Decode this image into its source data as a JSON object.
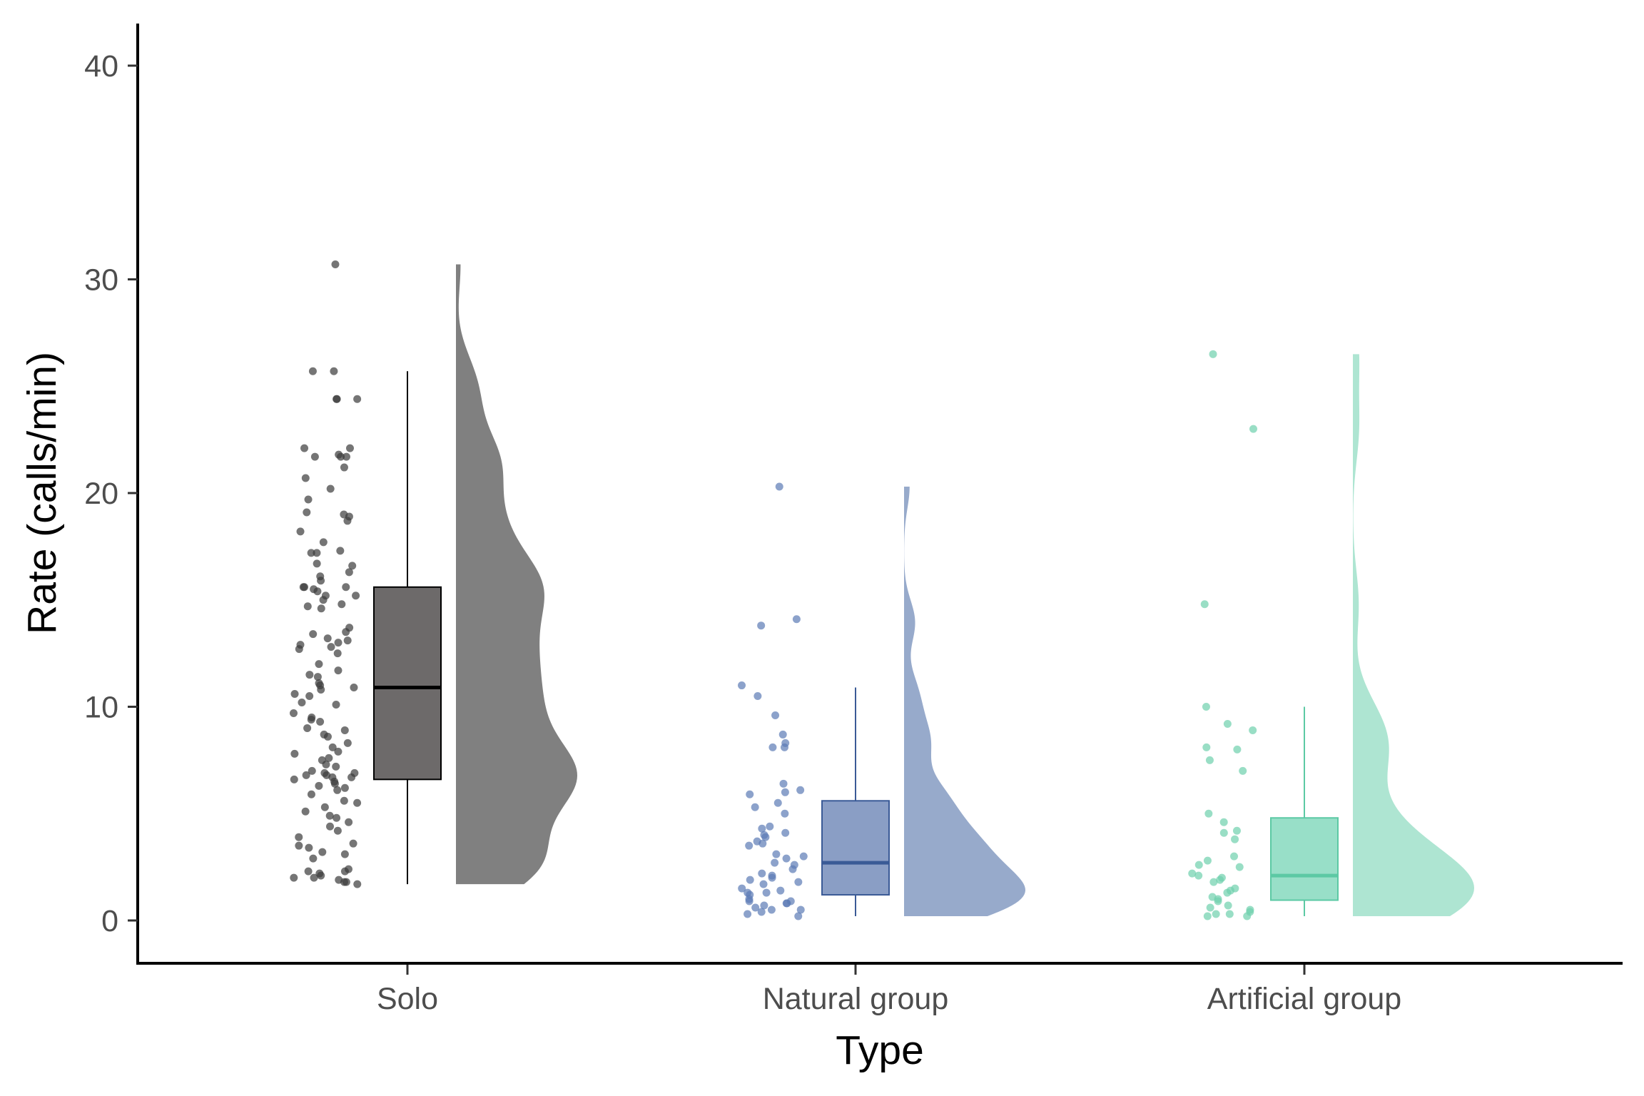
{
  "chart_data": {
    "type": "raincloud",
    "xlabel": "Type",
    "ylabel": "Rate (calls/min)",
    "ylim": [
      0,
      42
    ],
    "yticks": [
      0,
      10,
      20,
      30,
      40
    ],
    "grid": false,
    "categories": [
      "Solo",
      "Natural group",
      "Artificial group"
    ],
    "groups": [
      {
        "category": "Solo",
        "color": "#6d6a6a",
        "point_color": "#3a3a3a",
        "density_color": "#808080",
        "box": {
          "min": 1.7,
          "q1": 6.6,
          "median": 10.9,
          "q3": 15.6,
          "max": 25.7
        },
        "points": [
          30.7,
          25.7,
          25.7,
          24.4,
          24.4,
          24.4,
          22.1,
          22.1,
          21.8,
          21.7,
          21.7,
          21.7,
          21.2,
          20.7,
          20.2,
          19.7,
          19.1,
          19.0,
          18.9,
          18.7,
          18.2,
          17.7,
          17.3,
          17.2,
          17.2,
          16.7,
          16.6,
          16.3,
          16.1,
          15.9,
          15.6,
          15.6,
          15.6,
          15.5,
          15.4,
          15.2,
          15.2,
          15.0,
          14.8,
          14.7,
          14.6,
          13.7,
          13.5,
          13.4,
          13.2,
          13.1,
          13.0,
          12.9,
          12.8,
          12.7,
          12.5,
          12.0,
          11.7,
          11.5,
          11.4,
          11.1,
          11.0,
          10.9,
          10.8,
          10.6,
          10.5,
          10.2,
          10.1,
          9.7,
          9.5,
          9.4,
          9.3,
          9.0,
          8.9,
          8.7,
          8.6,
          8.3,
          8.1,
          7.9,
          7.8,
          7.6,
          7.5,
          7.3,
          7.2,
          7.0,
          6.9,
          6.9,
          6.8,
          6.8,
          6.7,
          6.7,
          6.6,
          6.5,
          6.4,
          6.3,
          6.2,
          6.1,
          5.9,
          5.6,
          5.5,
          5.3,
          5.1,
          4.9,
          4.8,
          4.6,
          4.4,
          4.2,
          3.9,
          3.6,
          3.5,
          3.4,
          3.2,
          3.1,
          2.9,
          2.4,
          2.3,
          2.3,
          2.2,
          2.1,
          2.0,
          2.0,
          1.9,
          1.8,
          1.8,
          1.7
        ],
        "density_max": 30.7
      },
      {
        "category": "Natural group",
        "color": "#8a9ec5",
        "point_color": "#5b7ab5",
        "density_color": "#97aacb",
        "line_color": "#3a5a96",
        "box": {
          "min": 0.2,
          "q1": 1.2,
          "median": 2.7,
          "q3": 5.6,
          "max": 10.9
        },
        "points": [
          20.3,
          14.1,
          13.8,
          11.0,
          10.5,
          9.6,
          8.7,
          8.3,
          8.1,
          8.1,
          6.4,
          6.1,
          6.0,
          5.9,
          5.5,
          5.3,
          5.0,
          4.4,
          4.3,
          4.1,
          4.0,
          3.9,
          3.7,
          3.6,
          3.5,
          3.1,
          3.0,
          2.9,
          2.7,
          2.6,
          2.4,
          2.2,
          2.1,
          2.0,
          1.9,
          1.8,
          1.7,
          1.5,
          1.4,
          1.3,
          1.3,
          1.2,
          1.0,
          0.9,
          0.9,
          0.8,
          0.8,
          0.7,
          0.6,
          0.5,
          0.5,
          0.4,
          0.3,
          0.2
        ],
        "density_max": 20.3
      },
      {
        "category": "Artificial group",
        "color": "#98dfc8",
        "point_color": "#6dd0ad",
        "density_color": "#aee5d2",
        "line_color": "#5cc9a4",
        "box": {
          "min": 0.2,
          "q1": 0.95,
          "median": 2.1,
          "q3": 4.8,
          "max": 10.0
        },
        "points": [
          26.5,
          23.0,
          14.8,
          10.0,
          9.2,
          8.9,
          8.1,
          8.0,
          7.5,
          7.0,
          5.0,
          4.6,
          4.2,
          4.1,
          3.8,
          3.0,
          2.8,
          2.6,
          2.5,
          2.2,
          2.1,
          2.0,
          1.9,
          1.8,
          1.5,
          1.4,
          1.3,
          1.1,
          1.0,
          0.9,
          0.7,
          0.6,
          0.5,
          0.4,
          0.3,
          0.3,
          0.2,
          0.2
        ],
        "density_max": 26.5
      }
    ]
  }
}
